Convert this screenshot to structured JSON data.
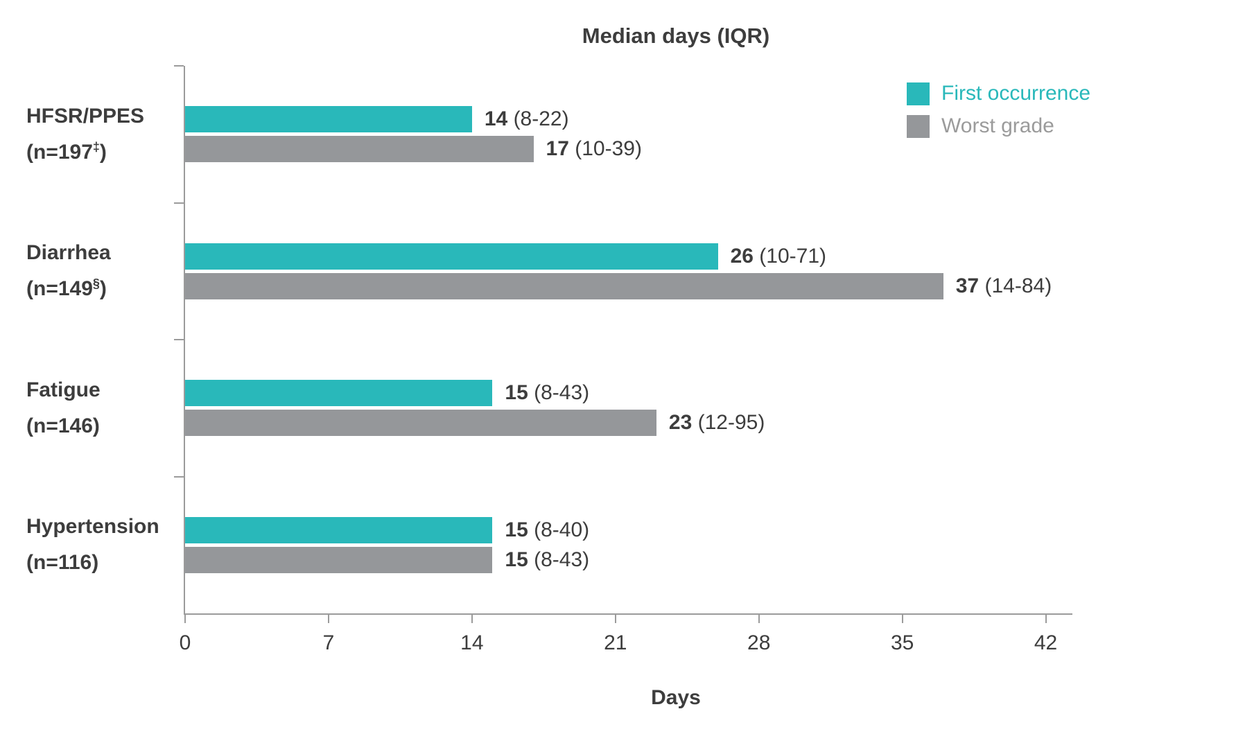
{
  "chart_data": {
    "type": "bar",
    "orientation": "horizontal",
    "title": "Median days (IQR)",
    "xlabel": "Days",
    "axis": {
      "min": 0,
      "max": 43.3
    },
    "xticks": [
      0,
      7,
      14,
      21,
      28,
      35,
      42
    ],
    "grid": "off",
    "legend_position": "top-right",
    "legend": [
      {
        "label": "First occurrence",
        "color": "#29b8ba"
      },
      {
        "label": "Worst grade",
        "color": "#95979a"
      }
    ],
    "colors": {
      "first": "#29b8ba",
      "worst": "#95979a",
      "text": "#3d3d3d",
      "axis": "#9b9b9b"
    },
    "rows": [
      {
        "category": "HFSR/PPES",
        "n_prefix": "(n=197",
        "n_mark": "‡",
        "n_suffix": ")",
        "first": {
          "value": 14,
          "median": "14",
          "iqr": "(8-22)"
        },
        "worst": {
          "value": 17,
          "median": "17",
          "iqr": "(10-39)"
        }
      },
      {
        "category": "Diarrhea",
        "n_prefix": "(n=149",
        "n_mark": "§",
        "n_suffix": ")",
        "first": {
          "value": 26,
          "median": "26",
          "iqr": "(10-71)"
        },
        "worst": {
          "value": 37,
          "median": "37",
          "iqr": "(14-84)"
        }
      },
      {
        "category": "Fatigue",
        "n_prefix": "(n=146",
        "n_mark": "",
        "n_suffix": ")",
        "first": {
          "value": 15,
          "median": "15",
          "iqr": "(8-43)"
        },
        "worst": {
          "value": 23,
          "median": "23",
          "iqr": "(12-95)"
        }
      },
      {
        "category": "Hypertension",
        "n_prefix": "(n=116",
        "n_mark": "",
        "n_suffix": ")",
        "first": {
          "value": 15,
          "median": "15",
          "iqr": "(8-40)"
        },
        "worst": {
          "value": 15,
          "median": "15",
          "iqr": "(8-43)"
        }
      }
    ]
  }
}
